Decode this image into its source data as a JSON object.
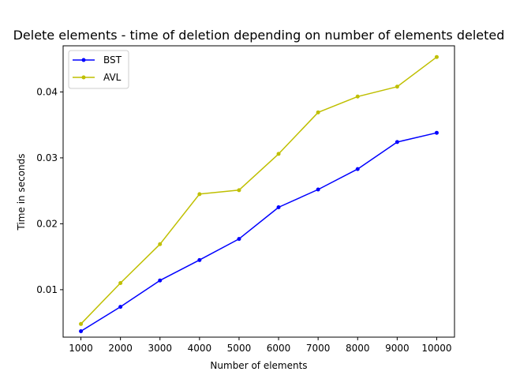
{
  "chart_data": {
    "type": "line",
    "title": "Delete elements - time of deletion depending on number of elements deleted",
    "xlabel": "Number of elements",
    "ylabel": "Time in seconds",
    "x": [
      1000,
      2000,
      3000,
      4000,
      5000,
      6000,
      7000,
      8000,
      9000,
      10000
    ],
    "x_tick_labels": [
      "1000",
      "2000",
      "3000",
      "4000",
      "5000",
      "6000",
      "7000",
      "8000",
      "9000",
      "10000"
    ],
    "y_ticks": [
      0.01,
      0.02,
      0.03,
      0.04
    ],
    "y_tick_labels": [
      "0.01",
      "0.02",
      "0.03",
      "0.04"
    ],
    "xlim": [
      550,
      10450
    ],
    "ylim": [
      0.0028,
      0.047
    ],
    "grid": false,
    "legend_position": "top-left",
    "series": [
      {
        "name": "BST",
        "color": "#0000ff",
        "marker": "point",
        "values": [
          0.0037,
          0.0074,
          0.0114,
          0.0145,
          0.0177,
          0.0225,
          0.0252,
          0.0283,
          0.0324,
          0.0338
        ]
      },
      {
        "name": "AVL",
        "color": "#bfbf00",
        "marker": "point",
        "values": [
          0.0048,
          0.011,
          0.0169,
          0.0245,
          0.0251,
          0.0306,
          0.0369,
          0.0393,
          0.0408,
          0.0453
        ]
      }
    ]
  }
}
